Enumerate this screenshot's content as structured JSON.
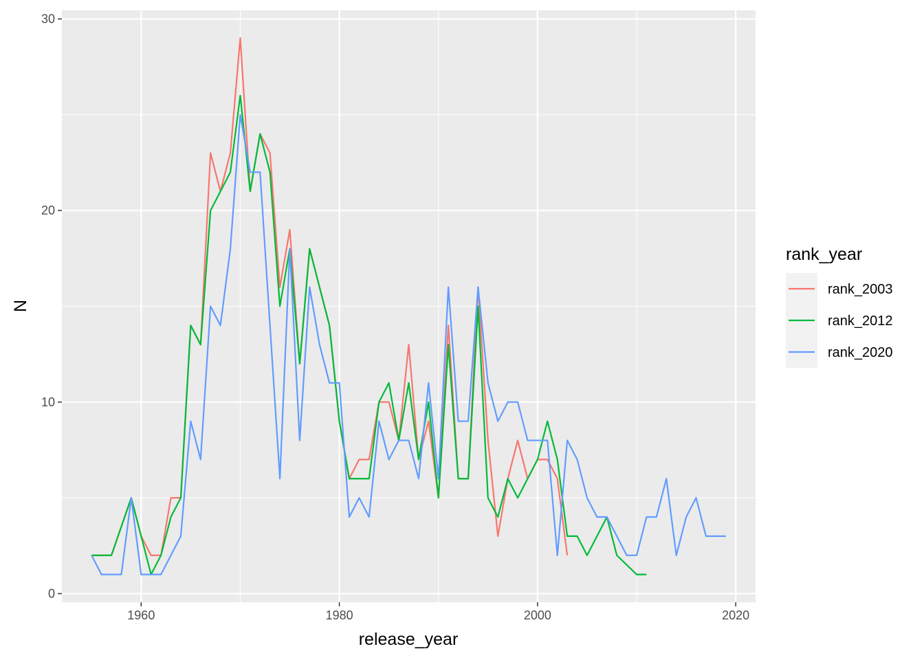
{
  "chart_data": {
    "type": "line",
    "xlabel": "release_year",
    "ylabel": "N",
    "xlim": [
      1952,
      2022
    ],
    "ylim": [
      0,
      30
    ],
    "x_ticks": [
      1960,
      1980,
      2000,
      2020
    ],
    "y_ticks": [
      0,
      10,
      20,
      30
    ],
    "grid": true,
    "legend": {
      "title": "rank_year",
      "placement": "right"
    },
    "series": [
      {
        "name": "rank_2003",
        "color": "#F8766D",
        "x": [
          1955,
          1956,
          1957,
          1959,
          1960,
          1961,
          1962,
          1963,
          1964,
          1965,
          1966,
          1967,
          1968,
          1969,
          1970,
          1971,
          1972,
          1973,
          1974,
          1975,
          1976,
          1977,
          1978,
          1979,
          1980,
          1981,
          1982,
          1983,
          1984,
          1985,
          1986,
          1987,
          1988,
          1989,
          1990,
          1991,
          1992,
          1993,
          1994,
          1995,
          1996,
          1997,
          1998,
          1999,
          2000,
          2001,
          2002,
          2003
        ],
        "y": [
          2,
          2,
          2,
          5,
          3,
          2,
          2,
          5,
          5,
          14,
          13,
          23,
          21,
          23,
          29,
          21,
          24,
          23,
          16,
          19,
          12,
          18,
          16,
          14,
          9,
          6,
          7,
          7,
          10,
          10,
          8,
          13,
          7,
          9,
          5,
          14,
          6,
          6,
          16,
          8,
          3,
          6,
          8,
          6,
          7,
          7,
          6,
          2
        ]
      },
      {
        "name": "rank_2012",
        "color": "#00BA38",
        "x": [
          1955,
          1956,
          1957,
          1959,
          1960,
          1961,
          1962,
          1963,
          1964,
          1965,
          1966,
          1967,
          1968,
          1969,
          1970,
          1971,
          1972,
          1973,
          1974,
          1975,
          1976,
          1977,
          1978,
          1979,
          1980,
          1981,
          1982,
          1983,
          1984,
          1985,
          1986,
          1987,
          1988,
          1989,
          1990,
          1991,
          1992,
          1993,
          1994,
          1995,
          1996,
          1997,
          1998,
          1999,
          2000,
          2001,
          2002,
          2003,
          2004,
          2005,
          2007,
          2008,
          2010,
          2011
        ],
        "y": [
          2,
          2,
          2,
          5,
          3,
          1,
          2,
          4,
          5,
          14,
          13,
          20,
          21,
          22,
          26,
          21,
          24,
          22,
          15,
          18,
          12,
          18,
          16,
          14,
          9,
          6,
          6,
          6,
          10,
          11,
          8,
          11,
          7,
          10,
          5,
          13,
          6,
          6,
          15,
          5,
          4,
          6,
          5,
          6,
          7,
          9,
          7,
          3,
          3,
          2,
          4,
          2,
          1,
          1
        ]
      },
      {
        "name": "rank_2020",
        "color": "#619CFF",
        "x": [
          1955,
          1956,
          1957,
          1958,
          1959,
          1960,
          1961,
          1962,
          1963,
          1964,
          1965,
          1966,
          1967,
          1968,
          1969,
          1970,
          1971,
          1972,
          1973,
          1974,
          1975,
          1976,
          1977,
          1978,
          1979,
          1980,
          1981,
          1982,
          1983,
          1984,
          1985,
          1986,
          1987,
          1988,
          1989,
          1990,
          1991,
          1992,
          1993,
          1994,
          1995,
          1996,
          1997,
          1998,
          1999,
          2000,
          2001,
          2002,
          2003,
          2004,
          2005,
          2006,
          2007,
          2008,
          2009,
          2010,
          2011,
          2012,
          2013,
          2014,
          2015,
          2016,
          2017,
          2018,
          2019
        ],
        "y": [
          2,
          1,
          1,
          1,
          5,
          1,
          1,
          1,
          2,
          3,
          9,
          7,
          15,
          14,
          18,
          25,
          22,
          22,
          14,
          6,
          18,
          8,
          16,
          13,
          11,
          11,
          4,
          5,
          4,
          9,
          7,
          8,
          8,
          6,
          11,
          6,
          16,
          9,
          9,
          16,
          11,
          9,
          10,
          10,
          8,
          8,
          8,
          2,
          8,
          7,
          5,
          4,
          4,
          3,
          2,
          2,
          4,
          4,
          6,
          2,
          4,
          5,
          3,
          3,
          3
        ]
      }
    ]
  }
}
